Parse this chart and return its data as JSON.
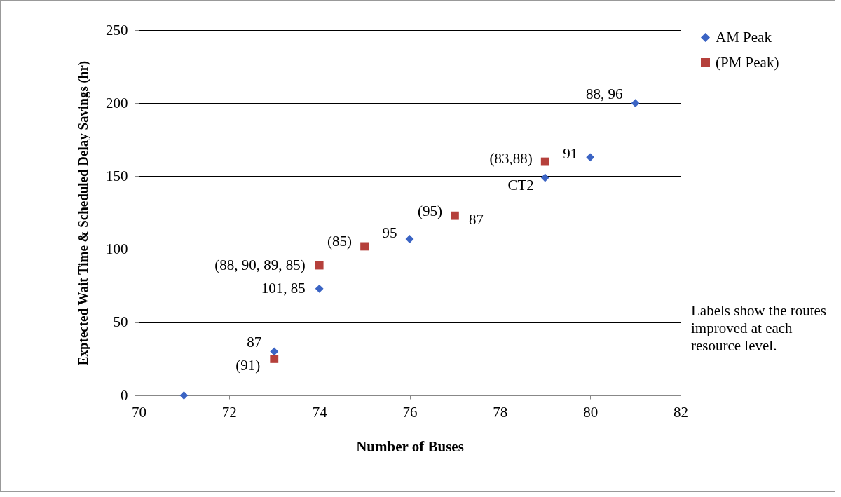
{
  "chart_data": {
    "type": "scatter",
    "xlabel": "Number of Buses",
    "ylabel": "Exptected Wait Time & Scheduled Delay Savings (hr)",
    "xlim": [
      70,
      82
    ],
    "xticks": [
      70,
      72,
      74,
      76,
      78,
      80,
      82
    ],
    "ylim": [
      0,
      250
    ],
    "yticks": [
      0,
      50,
      100,
      150,
      200,
      250
    ],
    "grid": "y",
    "legend": "right",
    "series": [
      {
        "name": "AM Peak",
        "color": "#3b64c4",
        "marker": "diamond",
        "x": [
          71,
          73,
          74,
          76,
          79,
          80,
          81
        ],
        "values": [
          0,
          30,
          73,
          107,
          149,
          163,
          200
        ]
      },
      {
        "name": "(PM Peak)",
        "color": "#b5403b",
        "marker": "square",
        "x": [
          73,
          74,
          75,
          77,
          79
        ],
        "values": [
          25,
          89,
          102,
          123,
          160
        ]
      }
    ],
    "annotations": [
      {
        "text": "87",
        "x": 73,
        "y": 30
      },
      {
        "text": "(91)",
        "x": 73,
        "y": 25
      },
      {
        "text": "101, 85",
        "x": 74,
        "y": 73
      },
      {
        "text": "(88, 90, 89, 85)",
        "x": 74,
        "y": 89
      },
      {
        "text": "(85)",
        "x": 75,
        "y": 102
      },
      {
        "text": "95",
        "x": 76,
        "y": 107
      },
      {
        "text": "(95)",
        "x": 77,
        "y": 123
      },
      {
        "text": "87",
        "x": 77,
        "y": 123
      },
      {
        "text": "CT2",
        "x": 79,
        "y": 149
      },
      {
        "text": "(83,88)",
        "x": 79,
        "y": 160
      },
      {
        "text": "91",
        "x": 80,
        "y": 163
      },
      {
        "text": "88, 96",
        "x": 81,
        "y": 200
      },
      "Labels show the routes improved at each resource level."
    ]
  }
}
